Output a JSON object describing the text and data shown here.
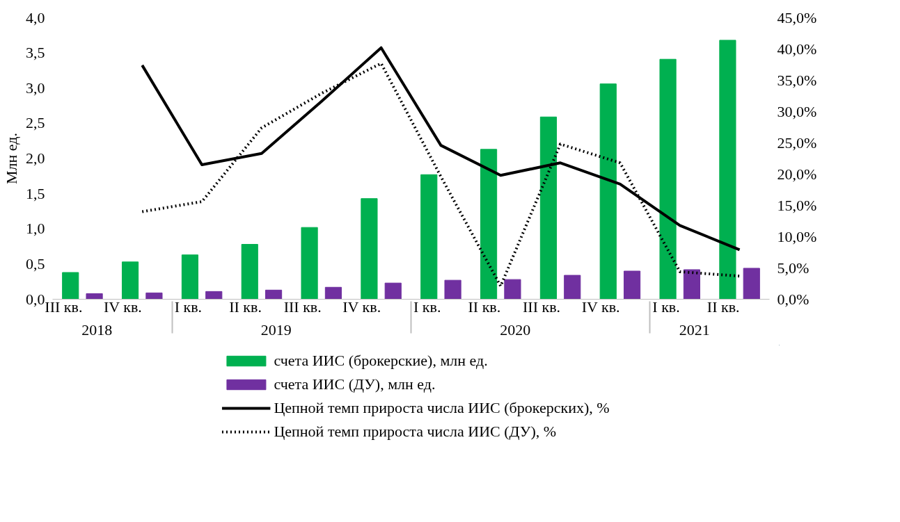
{
  "chart_data": {
    "type": "bar",
    "ylabel": "Млн ед.",
    "categories": [
      "III кв.",
      "IV кв.",
      "I кв.",
      "II кв.",
      "III кв.",
      "IV кв.",
      "I кв.",
      "II кв.",
      "III кв.",
      "IV кв.",
      "I кв.",
      "II кв."
    ],
    "series": [
      {
        "name": "счета ИИС (брокерские), млн ед.",
        "color": "#00b050",
        "values": [
          0.38,
          0.53,
          0.63,
          0.78,
          1.02,
          1.43,
          1.77,
          2.13,
          2.59,
          3.06,
          3.41,
          3.68
        ]
      },
      {
        "name": "счета ИИС (ДУ), млн ед.",
        "color": "#7030a0",
        "values": [
          0.08,
          0.09,
          0.11,
          0.13,
          0.17,
          0.23,
          0.27,
          0.28,
          0.34,
          0.4,
          0.42,
          0.44
        ]
      },
      {
        "name": "Цепной темп прироста числа ИИС (брокерских), %",
        "type": "line",
        "axis": "y2",
        "color": "#000000",
        "line_style": "solid",
        "values": [
          null,
          37.4,
          21.5,
          23.3,
          31.6,
          40.2,
          24.6,
          19.8,
          21.8,
          18.4,
          11.8,
          7.9
        ]
      },
      {
        "name": "Цепной темп прироста числа ИИС (ДУ), %",
        "type": "line",
        "axis": "y2",
        "color": "#000000",
        "line_style": "dotted",
        "values": [
          null,
          14.0,
          15.6,
          27.4,
          32.9,
          37.7,
          19.6,
          2.1,
          24.8,
          21.8,
          4.4,
          3.7
        ]
      }
    ],
    "ylim": [
      0,
      4
    ],
    "yticks": [
      {
        "value": 0,
        "label": "0,0"
      },
      {
        "value": 0.5,
        "label": "0,5"
      },
      {
        "value": 1,
        "label": "1,0"
      },
      {
        "value": 1.5,
        "label": "1,5"
      },
      {
        "value": 2,
        "label": "2,0"
      },
      {
        "value": 2.5,
        "label": "2,5"
      },
      {
        "value": 3,
        "label": "3,0"
      },
      {
        "value": 3.5,
        "label": "3,5"
      },
      {
        "value": 4,
        "label": "4,0"
      }
    ],
    "y2lim": [
      0,
      45
    ],
    "y2ticks": [
      {
        "value": 0,
        "label": "0,0%"
      },
      {
        "value": 5,
        "label": "5,0%"
      },
      {
        "value": 10,
        "label": "10,0%"
      },
      {
        "value": 15,
        "label": "15,0%"
      },
      {
        "value": 20,
        "label": "20,0%"
      },
      {
        "value": 25,
        "label": "25,0%"
      },
      {
        "value": 30,
        "label": "30,0%"
      },
      {
        "value": 35,
        "label": "35,0%"
      },
      {
        "value": 40,
        "label": "40,0%"
      },
      {
        "value": 45,
        "label": "45,0%"
      }
    ],
    "annotations": [
      "2018",
      "2019",
      "2020",
      "2021"
    ],
    "grid": false,
    "legend": "bottom"
  }
}
